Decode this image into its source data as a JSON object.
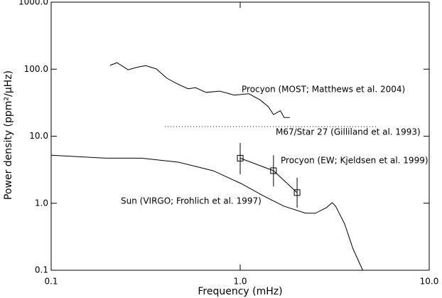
{
  "chart_data": {
    "type": "line",
    "log_x": true,
    "log_y": true,
    "x_label": "Frequency (mHz)",
    "y_label": "Power density (ppm²/μHz)",
    "xlim": [
      0.1,
      10.0
    ],
    "ylim": [
      0.1,
      1000.0
    ],
    "xticks": [
      {
        "value": 0.1,
        "label": "0.1"
      },
      {
        "value": 1,
        "label": "1.0"
      },
      {
        "value": 10,
        "label": "10.0"
      }
    ],
    "yticks": [
      {
        "value": 0.1,
        "label": "0.1"
      },
      {
        "value": 1,
        "label": "1.0"
      },
      {
        "value": 10,
        "label": "10.0"
      },
      {
        "value": 100,
        "label": "100.0"
      },
      {
        "value": 1000,
        "label": "1000.0"
      }
    ],
    "color": "#000000",
    "series": [
      {
        "name": "Procyon (MOST; Matthews et al. 2004)",
        "style": "solid",
        "x": [
          0.205,
          0.223,
          0.255,
          0.29,
          0.316,
          0.36,
          0.41,
          0.467,
          0.53,
          0.58,
          0.66,
          0.78,
          0.93,
          1.11,
          1.27,
          1.41,
          1.5,
          1.63,
          1.71,
          1.83
        ],
        "values": [
          114,
          125,
          98,
          108,
          113,
          101,
          73,
          60,
          51,
          53,
          45,
          47,
          41,
          43,
          35,
          27.5,
          21,
          24,
          19,
          19
        ]
      },
      {
        "name": "M67/Star 27 (Gilliland et al. 1993)",
        "style": "dotted",
        "x": [
          0.4,
          5.3
        ],
        "values": [
          13.9,
          13.9
        ]
      },
      {
        "name": "Sun (VIRGO; Frohlich et al. 1997)",
        "style": "solid",
        "x": [
          0.1,
          0.196,
          0.3,
          0.47,
          0.72,
          1.01,
          1.32,
          1.71,
          2.22,
          2.5,
          2.86,
          3.07,
          3.2,
          3.57,
          3.95,
          4.45
        ],
        "values": [
          5.2,
          4.7,
          4.7,
          4.1,
          3.05,
          1.97,
          1.3,
          0.9,
          0.71,
          0.71,
          0.86,
          1.02,
          0.9,
          0.49,
          0.21,
          0.1
        ]
      },
      {
        "name": "Procyon (EW; Kjeldsen et al. 1999)",
        "style": "markers",
        "x": [
          1.0,
          1.5,
          2.0
        ],
        "values": [
          4.7,
          3.06,
          1.44
        ],
        "lower": [
          2.7,
          1.78,
          0.86
        ],
        "upper": [
          7.9,
          5.2,
          2.4
        ]
      }
    ]
  }
}
